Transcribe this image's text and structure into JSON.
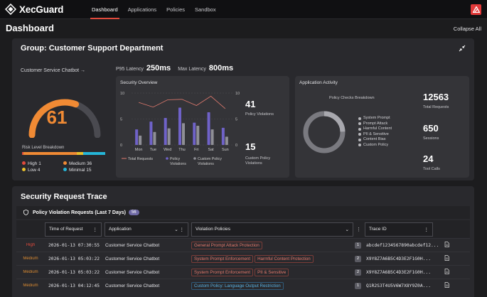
{
  "app": {
    "name": "XecGuard"
  },
  "nav": {
    "tabs": [
      {
        "label": "Dashboard",
        "active": true
      },
      {
        "label": "Applications"
      },
      {
        "label": "Policies"
      },
      {
        "label": "Sandbox"
      }
    ]
  },
  "header": {
    "title": "Dashboard",
    "collapse_all": "Collapse All"
  },
  "group": {
    "title": "Group: Customer Support Department",
    "app_link": "Customer Service Chatbot →",
    "p95_label": "P95 Latency",
    "p95_value": "250ms",
    "max_label": "Max Latency",
    "max_value": "800ms",
    "risk_score": "61",
    "risk_fraction": 0.61,
    "risk_breakdown_title": "Risk Level Breakdown",
    "risk_levels": [
      {
        "label": "High",
        "value": "1",
        "color": "#e04a3c"
      },
      {
        "label": "Medium",
        "value": "36",
        "color": "#f08a34"
      },
      {
        "label": "Low",
        "value": "4",
        "color": "#e8c02c"
      },
      {
        "label": "Minimal",
        "value": "15",
        "color": "#25b6d8"
      }
    ]
  },
  "security_overview": {
    "title": "Security Overview",
    "violations_value": "41",
    "violations_label": "Policy Violations",
    "custom_value": "15",
    "custom_label": "Custom Policy Violations",
    "legend": [
      "Total Requests",
      "Policy Violations",
      "Custom Policy Violations"
    ]
  },
  "chart_data": {
    "type": "bar",
    "categories": [
      "Mon",
      "Tue",
      "Wed",
      "Thu",
      "Fri",
      "Sat",
      "Sun"
    ],
    "ylim": [
      0,
      10
    ],
    "yticks": [
      "0",
      "5",
      "10"
    ],
    "series": [
      {
        "name": "Policy Violations",
        "values": [
          3,
          4.5,
          5.2,
          7.2,
          4.3,
          6.3,
          3.3
        ],
        "color": "#6f62c8"
      },
      {
        "name": "Custom Policy Violations",
        "values": [
          1.8,
          2.5,
          3.2,
          4.2,
          3.7,
          3.0,
          1.6
        ],
        "color": "#8f8f96"
      },
      {
        "name": "Total Requests",
        "values": [
          8.2,
          7.3,
          8.7,
          8.8,
          7.6,
          9.4,
          7.0
        ],
        "color": "#e07a6e",
        "kind": "line"
      }
    ]
  },
  "activity": {
    "title": "Application Activity",
    "breakdown_title": "Policy Checks Breakdown",
    "checks": [
      "System Prompt",
      "Prompt Attack",
      "Harmful Content",
      "PII & Sensitive",
      "Content Bias",
      "Custom Policy"
    ],
    "total_requests": "12563",
    "total_requests_label": "Total Requests",
    "sessions": "650",
    "sessions_label": "Sessions",
    "tool_calls": "24",
    "tool_calls_label": "Tool Calls"
  },
  "trace": {
    "title": "Security Request Trace",
    "violations_title": "Policy Violation Requests (Last 7 Days)",
    "violations_count": "56",
    "columns": [
      "Time of Request",
      "Application",
      "Violation Policies",
      "Trace ID"
    ],
    "rows": [
      {
        "severity": "High",
        "time": "2026-01-13 07:30:55",
        "app": "Customer Service Chatbot",
        "policies": [
          "General Prompt Attack Protection"
        ],
        "count": "1",
        "trace_id": "abcdef1234567890abcdef12...",
        "policy_style": "red"
      },
      {
        "severity": "Medium",
        "time": "2026-01-13 05:03:22",
        "app": "Customer Service Chatbot",
        "policies": [
          "System Prompt Enforcement",
          "Harmful Content Protection"
        ],
        "count": "2",
        "trace_id": "X9Y8Z7A6B5C4D3E2F1G0H...",
        "policy_style": "red"
      },
      {
        "severity": "Medium",
        "time": "2026-01-13 05:03:22",
        "app": "Customer Service Chatbot",
        "policies": [
          "System Prompt Enforcement",
          "PII & Sensitive"
        ],
        "count": "2",
        "trace_id": "X9Y8Z7A6B5C4D3E2F1G0H...",
        "policy_style": "red"
      },
      {
        "severity": "Medium",
        "time": "2026-01-13 04:12:45",
        "app": "Customer Service Chatbot",
        "policies": [
          "Custom Policy: Language Output Restriction"
        ],
        "count": "1",
        "trace_id": "Q1R2S3T4U5V6W7X8Y9Z0A...",
        "policy_style": "blue"
      }
    ]
  }
}
